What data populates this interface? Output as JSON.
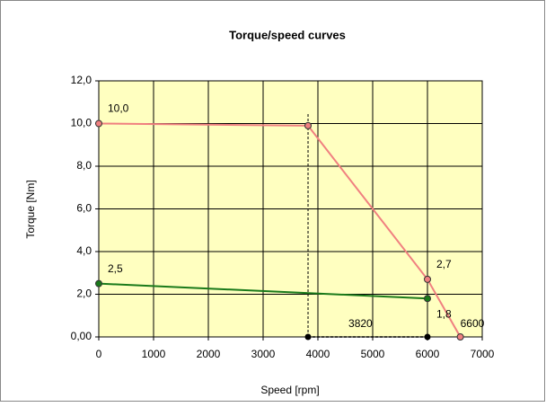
{
  "chart_data": {
    "type": "line",
    "title": "Torque/speed curves",
    "xlabel": "Speed [rpm]",
    "ylabel": "Torque [Nm]",
    "xlim": [
      0,
      7000
    ],
    "xticks": [
      0,
      1000,
      2000,
      3000,
      4000,
      5000,
      6000,
      7000
    ],
    "ylim": [
      0,
      12
    ],
    "yticks": [
      {
        "value": 0,
        "label": "0,00"
      },
      {
        "value": 2,
        "label": "2,0"
      },
      {
        "value": 4,
        "label": "4,0"
      },
      {
        "value": 6,
        "label": "6,0"
      },
      {
        "value": 8,
        "label": "8,0"
      },
      {
        "value": 10,
        "label": "10,0"
      },
      {
        "value": 12,
        "label": "12,0"
      }
    ],
    "grid": true,
    "series": [
      {
        "color": "#f08080",
        "x": [
          0,
          3820,
          6000,
          6600
        ],
        "values": [
          10.0,
          9.9,
          2.7,
          0
        ],
        "value_labels": [
          "10,0",
          null,
          "2,7",
          null
        ]
      },
      {
        "color": "#1a7a1a",
        "x": [
          0,
          6000
        ],
        "values": [
          2.5,
          1.8
        ],
        "value_labels": [
          "2,5",
          "1,8"
        ]
      }
    ],
    "annotations": [
      {
        "text": "3820",
        "x": 3820
      },
      {
        "text": "6600",
        "x": 6600
      }
    ]
  }
}
